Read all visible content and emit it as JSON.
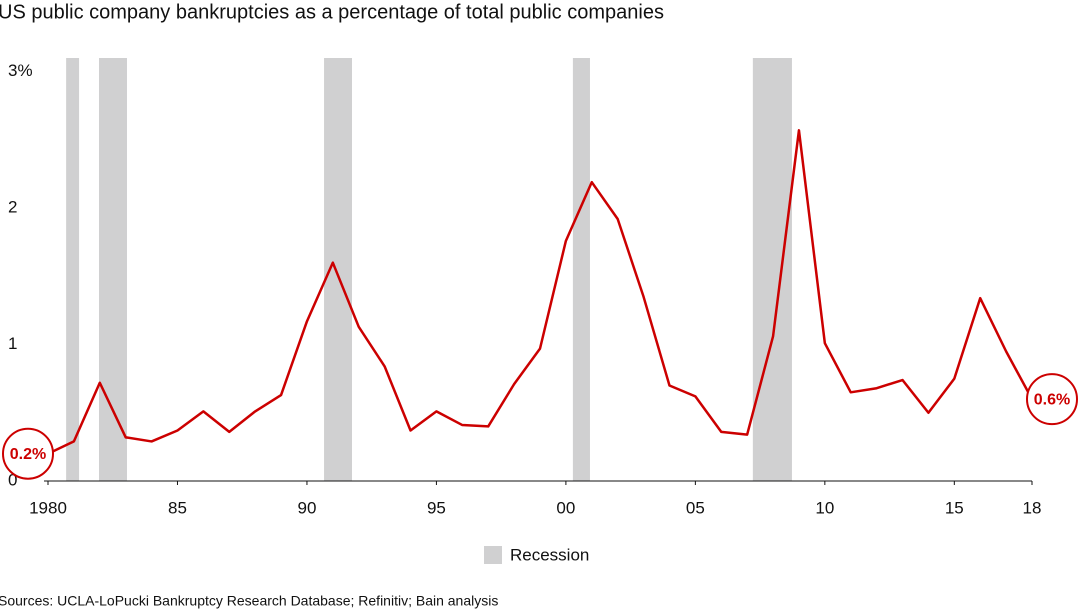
{
  "chart_data": {
    "type": "line",
    "title": "US public company bankruptcies as a percentage of total public companies",
    "x": [
      1980,
      1981,
      1982,
      1983,
      1984,
      1985,
      1986,
      1987,
      1988,
      1989,
      1990,
      1991,
      1992,
      1993,
      1994,
      1995,
      1996,
      1997,
      1998,
      1999,
      2000,
      2001,
      2002,
      2003,
      2004,
      2005,
      2006,
      2007,
      2008,
      2009,
      2010,
      2011,
      2012,
      2013,
      2014,
      2015,
      2016,
      2017,
      2018
    ],
    "series": [
      {
        "name": "US public company bankruptcies",
        "color": "#cc0000",
        "values": [
          0.2,
          0.29,
          0.72,
          0.32,
          0.29,
          0.37,
          0.51,
          0.36,
          0.51,
          0.63,
          1.17,
          1.6,
          1.13,
          0.84,
          0.37,
          0.51,
          0.41,
          0.4,
          0.71,
          0.97,
          1.76,
          2.19,
          1.92,
          1.35,
          0.7,
          0.62,
          0.36,
          0.34,
          1.06,
          2.57,
          1.01,
          0.65,
          0.68,
          0.74,
          0.5,
          0.75,
          1.34,
          0.95,
          0.6
        ],
        "value_labels": [
          "0.2%",
          null,
          null,
          null,
          null,
          null,
          null,
          null,
          null,
          null,
          null,
          null,
          null,
          null,
          null,
          null,
          null,
          null,
          null,
          null,
          null,
          null,
          null,
          null,
          null,
          null,
          null,
          null,
          null,
          null,
          null,
          null,
          null,
          null,
          null,
          null,
          null,
          null,
          "0.6%"
        ]
      }
    ],
    "recessions": {
      "name": "Recession",
      "color": "#d0d0d1",
      "periods": [
        [
          1980.7,
          1981.2
        ],
        [
          1981.97,
          1983.05
        ],
        [
          1990.66,
          1991.74
        ],
        [
          2000.27,
          2000.93
        ],
        [
          2007.22,
          2008.73
        ]
      ]
    },
    "xlim": [
      1980,
      2018
    ],
    "xticks": [
      1980,
      {
        "value": 1985,
        "label": "85"
      },
      {
        "value": 1990,
        "label": "90"
      },
      {
        "value": 1995,
        "label": "95"
      },
      {
        "value": 2000,
        "label": "00"
      },
      {
        "value": 2005,
        "label": "05"
      },
      {
        "value": 2010,
        "label": "10"
      },
      {
        "value": 2015,
        "label": "15"
      },
      {
        "value": 2018,
        "label": "18"
      }
    ],
    "ylim": [
      0,
      3.1
    ],
    "yticks": [
      0,
      1,
      2,
      {
        "value": 3,
        "label": "3%"
      }
    ],
    "grid": false,
    "source": "Sources: UCLA-LoPucki Bankruptcy Research Database; Refinitiv; Bain analysis"
  }
}
